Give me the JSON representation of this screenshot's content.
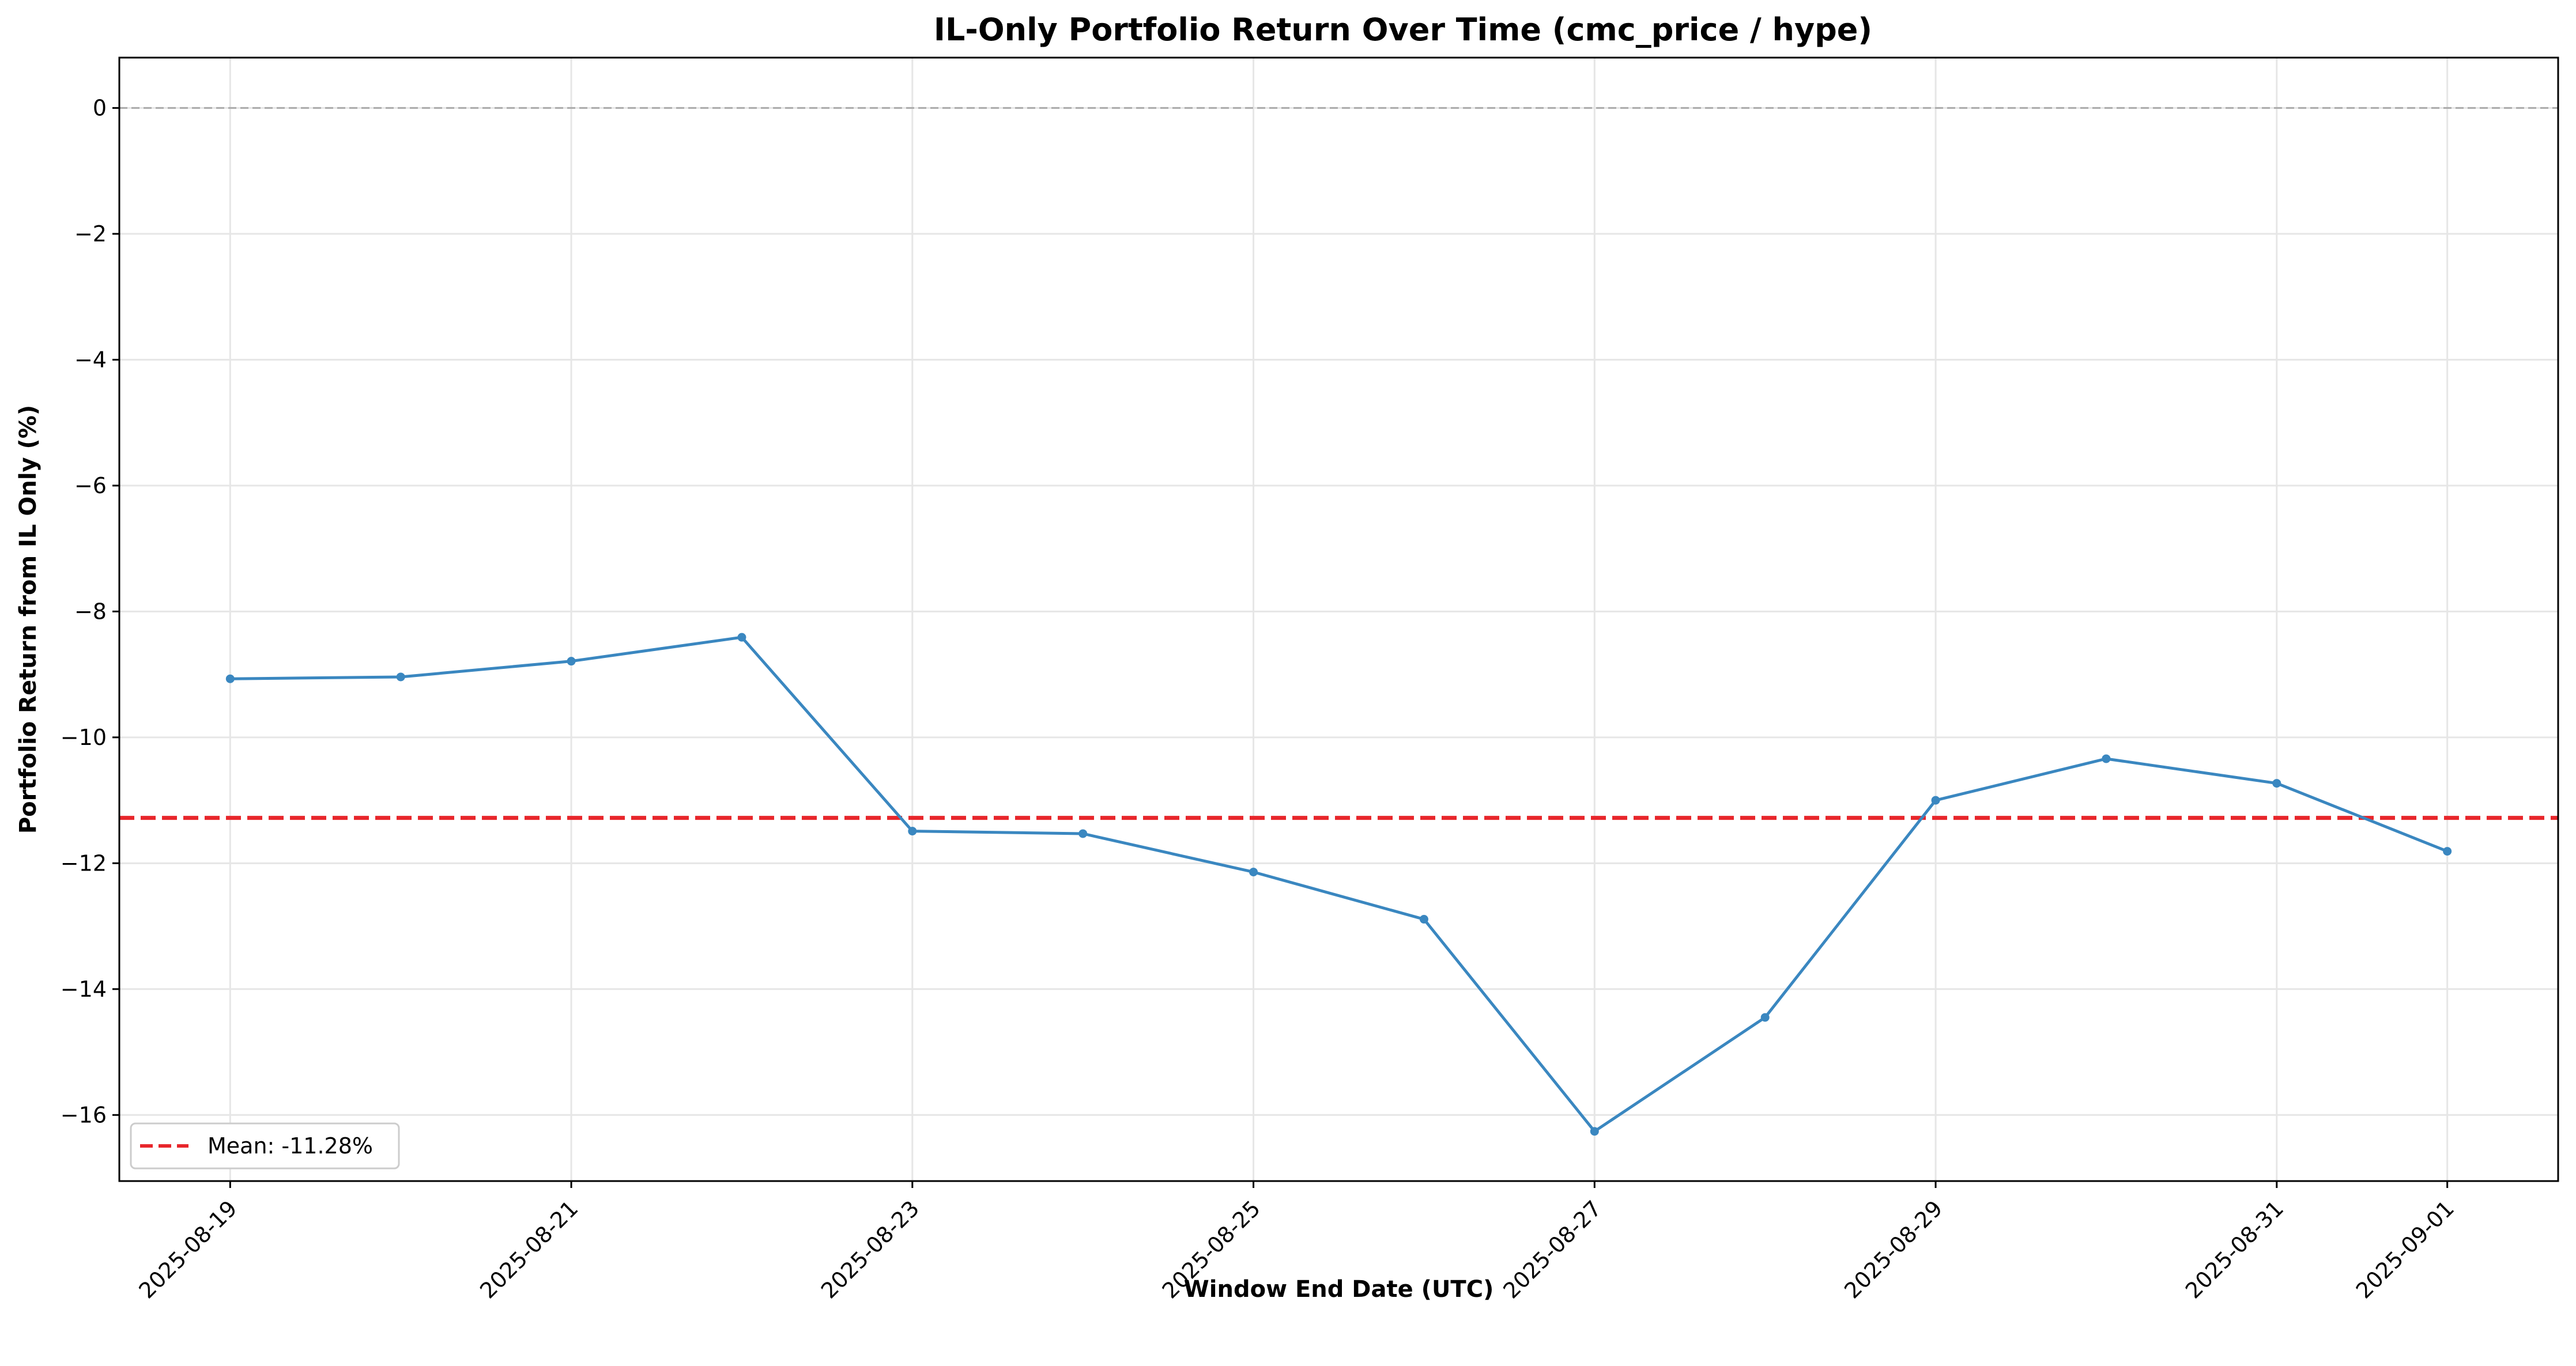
{
  "chart_data": {
    "type": "line",
    "title": "IL-Only Portfolio Return Over Time (cmc_price / hype)",
    "xlabel": "Window End Date (UTC)",
    "ylabel": "Portfolio Return from IL Only (%)",
    "x": [
      "2025-08-19",
      "2025-08-20",
      "2025-08-21",
      "2025-08-22",
      "2025-08-23",
      "2025-08-24",
      "2025-08-25",
      "2025-08-26",
      "2025-08-27",
      "2025-08-28",
      "2025-08-29",
      "2025-08-30",
      "2025-08-31",
      "2025-09-01"
    ],
    "series": [
      {
        "values": [
          -9.07,
          -9.04,
          -8.79,
          -8.41,
          -11.49,
          -11.53,
          -12.14,
          -12.89,
          -16.26,
          -14.45,
          -11.0,
          -10.34,
          -10.73,
          -11.81
        ],
        "color": "#3a87c0"
      }
    ],
    "mean": {
      "label": "Mean: -11.28%",
      "value": -11.28,
      "color": "#e8262b"
    },
    "zero_line": {
      "value": 0,
      "color": "#aaaaaa"
    },
    "xlim": [
      "2025-08-18.35",
      "2025-09-01.65"
    ],
    "ylim": [
      -17.05,
      0.8
    ],
    "yticks": [
      0,
      -2,
      -4,
      -6,
      -8,
      -10,
      -12,
      -14,
      -16
    ],
    "ytick_labels": [
      "0",
      "−2",
      "−4",
      "−6",
      "−8",
      "−10",
      "−12",
      "−14",
      "−16"
    ],
    "xticks": [
      "2025-08-19",
      "2025-08-21",
      "2025-08-23",
      "2025-08-25",
      "2025-08-27",
      "2025-08-29",
      "2025-08-31",
      "2025-09-01"
    ],
    "grid": true,
    "legend_position": "lower-left"
  }
}
